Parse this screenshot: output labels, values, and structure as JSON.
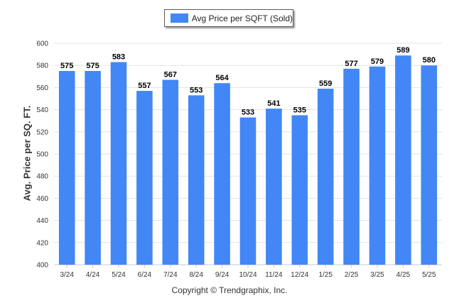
{
  "chart_data": {
    "type": "bar",
    "title": "",
    "xlabel": "",
    "ylabel": "Avg. Price per SQ. FT.",
    "categories": [
      "3/24",
      "4/24",
      "5/24",
      "6/24",
      "7/24",
      "8/24",
      "9/24",
      "10/24",
      "11/24",
      "12/24",
      "1/25",
      "2/25",
      "3/25",
      "4/25",
      "5/25"
    ],
    "series": [
      {
        "name": "Avg Price per SQFT (Sold)",
        "values": [
          575,
          575,
          583,
          557,
          567,
          553,
          564,
          533,
          541,
          535,
          559,
          577,
          579,
          589,
          580
        ]
      }
    ],
    "ylim": [
      400,
      600
    ],
    "yticks": [
      400,
      420,
      440,
      460,
      480,
      500,
      520,
      540,
      560,
      580,
      600
    ],
    "grid": true,
    "legend_position": "top-center",
    "bar_color": "#4287f5",
    "data_labels": true
  },
  "footer": "Copyright © Trendgraphix, Inc."
}
